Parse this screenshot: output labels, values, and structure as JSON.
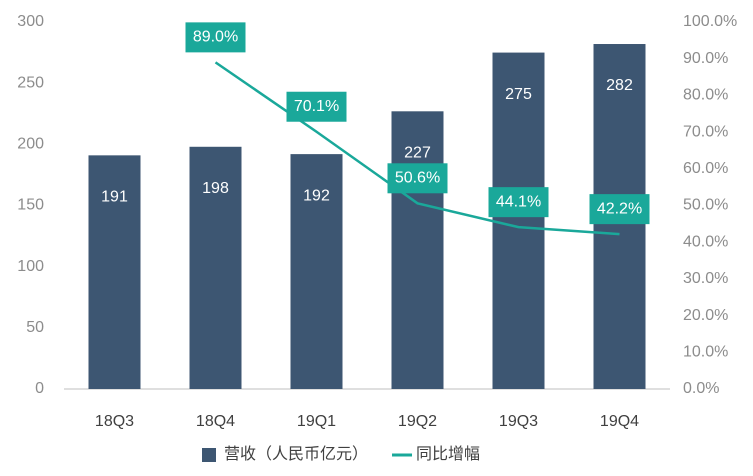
{
  "chart_data": {
    "type": "bar",
    "categories": [
      "18Q3",
      "18Q4",
      "19Q1",
      "19Q2",
      "19Q3",
      "19Q4"
    ],
    "series": [
      {
        "name": "营收（人民币亿元）",
        "type": "bar",
        "color": "#3d5672",
        "values": [
          191,
          198,
          192,
          227,
          275,
          282
        ]
      },
      {
        "name": "同比增幅",
        "type": "line",
        "axis": "y2",
        "color": "#1aa89a",
        "values": [
          null,
          89.0,
          70.1,
          50.6,
          44.1,
          42.2
        ],
        "value_labels": [
          null,
          "89.0%",
          "70.1%",
          "50.6%",
          "44.1%",
          "42.2%"
        ]
      }
    ],
    "ylim": [
      0,
      300
    ],
    "yticks": [
      0,
      50,
      100,
      150,
      200,
      250,
      300
    ],
    "y2lim": [
      0,
      100
    ],
    "y2ticks": [
      {
        "value": 0,
        "label": "0.0%"
      },
      {
        "value": 10,
        "label": "10.0%"
      },
      {
        "value": 20,
        "label": "20.0%"
      },
      {
        "value": 30,
        "label": "30.0%"
      },
      {
        "value": 40,
        "label": "40.0%"
      },
      {
        "value": 50,
        "label": "50.0%"
      },
      {
        "value": 60,
        "label": "60.0%"
      },
      {
        "value": 70,
        "label": "70.0%"
      },
      {
        "value": 80,
        "label": "80.0%"
      },
      {
        "value": 90,
        "label": "90.0%"
      },
      {
        "value": 100,
        "label": "100.0%"
      }
    ],
    "legend": "bottom"
  }
}
